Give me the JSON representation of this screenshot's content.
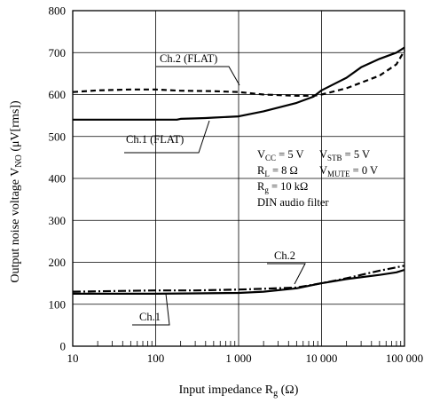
{
  "chart_data": {
    "type": "line",
    "xlabel": "Input impedance",
    "xlabel_sym": "R",
    "xlabel_sub": "g",
    "xlabel_unit": "(Ω)",
    "ylabel": "Output noise voltage",
    "ylabel_sym": "V",
    "ylabel_sub": "NO",
    "ylabel_unit": "(μV[rms])",
    "x_scale": "log",
    "xlim": [
      10,
      100000
    ],
    "ylim": [
      0,
      800
    ],
    "grid": true,
    "x_ticks": [
      {
        "value": 10,
        "label": "10"
      },
      {
        "value": 100,
        "label": "100"
      },
      {
        "value": 1000,
        "label": "1 000"
      },
      {
        "value": 10000,
        "label": "10 000"
      },
      {
        "value": 100000,
        "label": "100 000"
      }
    ],
    "y_ticks": [
      0,
      100,
      200,
      300,
      400,
      500,
      600,
      700,
      800
    ],
    "series": [
      {
        "name": "Ch.2 (FLAT)",
        "style": "dashed",
        "x": [
          10,
          20,
          50,
          100,
          200,
          500,
          1000,
          2000,
          5000,
          8000,
          10000,
          20000,
          50000,
          80000,
          100000
        ],
        "values": [
          606,
          610,
          612,
          612,
          609,
          608,
          606,
          600,
          597,
          597,
          600,
          615,
          645,
          672,
          705
        ]
      },
      {
        "name": "Ch.1 (FLAT)",
        "style": "solid",
        "x": [
          10,
          50,
          100,
          180,
          200,
          300,
          400,
          500,
          1000,
          2000,
          5000,
          8000,
          10000,
          20000,
          30000,
          50000,
          80000,
          100000
        ],
        "values": [
          540,
          540,
          540,
          540,
          542,
          543,
          544,
          545,
          548,
          560,
          580,
          595,
          610,
          640,
          665,
          685,
          700,
          712
        ]
      },
      {
        "name": "Ch.2",
        "style": "dashdot",
        "x": [
          10,
          50,
          100,
          300,
          1000,
          2000,
          5000,
          10000,
          20000,
          50000,
          80000,
          100000
        ],
        "values": [
          130,
          132,
          133,
          133,
          135,
          137,
          140,
          150,
          162,
          180,
          188,
          192
        ]
      },
      {
        "name": "Ch.1",
        "style": "solid",
        "x": [
          10,
          50,
          100,
          300,
          1000,
          2000,
          5000,
          10000,
          20000,
          50000,
          80000,
          100000
        ],
        "values": [
          125,
          125,
          125,
          126,
          127,
          130,
          138,
          150,
          160,
          170,
          176,
          182
        ]
      }
    ],
    "conditions": [
      {
        "sym": "V",
        "sub": "CC",
        "rest": " = 5 V"
      },
      {
        "sym": "V",
        "sub": "STB",
        "rest": " = 5 V"
      },
      {
        "sym": "R",
        "sub": "L",
        "rest": " = 8 Ω"
      },
      {
        "sym": "V",
        "sub": "MUTE",
        "rest": " = 0 V"
      },
      {
        "sym": "R",
        "sub": "g",
        "rest": " = 10 kΩ"
      },
      {
        "text": "DIN audio filter"
      }
    ]
  }
}
